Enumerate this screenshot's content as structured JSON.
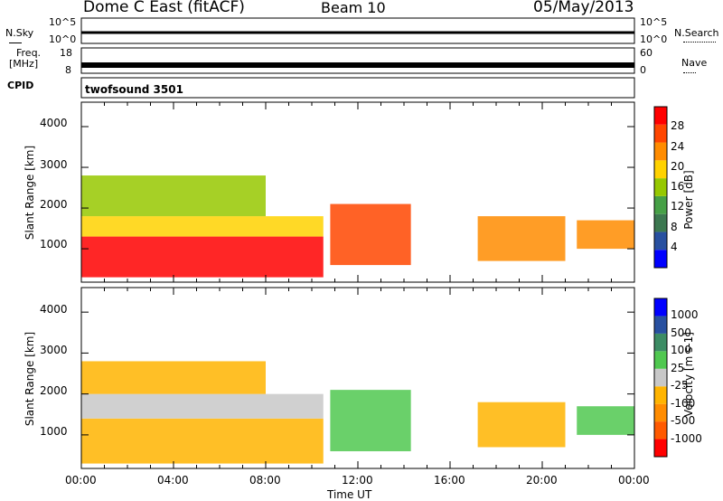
{
  "header": {
    "radar": "Dome C East (fitACF)",
    "beam": "Beam 10",
    "date": "05/May/2013"
  },
  "panels": {
    "nsky": {
      "label": "N.Sky",
      "top": "10^5",
      "bottom": "10^0"
    },
    "nsearch": {
      "label": "N.Search",
      "top": "10^5",
      "bottom": "10^0"
    },
    "freq": {
      "label_line1": "Freq.",
      "label_line2": "[MHz]",
      "top": "18",
      "bottom": "8"
    },
    "nave": {
      "label": "Nave",
      "top": "60",
      "bottom": "0"
    },
    "cpid": {
      "label": "CPID",
      "value": "twofsound 3501"
    }
  },
  "colors": {
    "power": [
      "#0000ff",
      "#2850a0",
      "#3c7850",
      "#46a046",
      "#96c800",
      "#ffd200",
      "#ff8c00",
      "#ff4600",
      "#ff0000"
    ],
    "velocity": [
      "#ff0000",
      "#ff5a00",
      "#ff8c00",
      "#ffb400",
      "#c8c8c8",
      "#50c850",
      "#3c8c64",
      "#2850a0",
      "#0000ff"
    ]
  },
  "chart_data": [
    {
      "type": "heatmap",
      "title": "",
      "xlabel": "Time UT",
      "ylabel": "Slant Range [km]",
      "xticks": [
        "00:00",
        "04:00",
        "08:00",
        "12:00",
        "16:00",
        "20:00",
        "00:00"
      ],
      "yticks": [
        "1000",
        "2000",
        "3000",
        "4000"
      ],
      "ylim": [
        180,
        4600
      ],
      "colorbar": {
        "label": "Power [dB]",
        "ticks": [
          "4",
          "8",
          "12",
          "16",
          "20",
          "24",
          "28"
        ],
        "range": [
          0,
          32
        ]
      },
      "regions": [
        {
          "t0": 0.0,
          "t1": 10.5,
          "r0": 300,
          "r1": 1300,
          "value": 30
        },
        {
          "t0": 0.0,
          "t1": 10.5,
          "r0": 1300,
          "r1": 1800,
          "value": 20
        },
        {
          "t0": 0.0,
          "t1": 8.0,
          "r0": 1800,
          "r1": 2800,
          "value": 16
        },
        {
          "t0": 10.8,
          "t1": 14.3,
          "r0": 600,
          "r1": 2100,
          "value": 26
        },
        {
          "t0": 17.2,
          "t1": 21.0,
          "r0": 700,
          "r1": 1800,
          "value": 24
        },
        {
          "t0": 21.5,
          "t1": 24.0,
          "r0": 1000,
          "r1": 1700,
          "value": 22
        }
      ]
    },
    {
      "type": "heatmap",
      "title": "",
      "xlabel": "Time UT",
      "ylabel": "Slant Range [km]",
      "xticks": [
        "00:00",
        "04:00",
        "08:00",
        "12:00",
        "16:00",
        "20:00",
        "00:00"
      ],
      "yticks": [
        "1000",
        "2000",
        "3000",
        "4000"
      ],
      "ylim": [
        180,
        4600
      ],
      "colorbar": {
        "label": "Velocity [m s-1]",
        "ticks": [
          "1000",
          "500",
          "100",
          "25",
          "-25",
          "-100",
          "-500",
          "-1000"
        ],
        "range": [
          -1200,
          1200
        ]
      },
      "regions": [
        {
          "t0": 0.0,
          "t1": 10.5,
          "r0": 300,
          "r1": 1400,
          "value": -300
        },
        {
          "t0": 0.0,
          "t1": 10.5,
          "r0": 1400,
          "r1": 2000,
          "value": -60
        },
        {
          "t0": 0.0,
          "t1": 8.0,
          "r0": 2000,
          "r1": 2800,
          "value": -150
        },
        {
          "t0": 10.8,
          "t1": 14.3,
          "r0": 600,
          "r1": 2100,
          "value": 200
        },
        {
          "t0": 17.2,
          "t1": 21.0,
          "r0": 700,
          "r1": 1800,
          "value": -150
        },
        {
          "t0": 21.5,
          "t1": 24.0,
          "r0": 1000,
          "r1": 1700,
          "value": 150
        }
      ]
    }
  ]
}
